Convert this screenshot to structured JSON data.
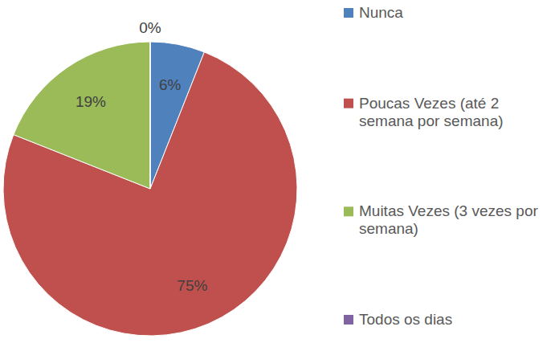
{
  "chart_data": {
    "type": "pie",
    "categories": [
      "Nunca",
      "Poucas Vezes (até 2 semana por semana)",
      "Muitas Vezes (3 vezes por semana)",
      "Todos os dias"
    ],
    "values": [
      6,
      75,
      19,
      0
    ],
    "value_labels": [
      "6%",
      "75%",
      "19%",
      "0%"
    ],
    "colors": [
      "#4f81bd",
      "#c0504d",
      "#9bbb59",
      "#8064a2"
    ],
    "data_labels": true,
    "legend": "right"
  }
}
